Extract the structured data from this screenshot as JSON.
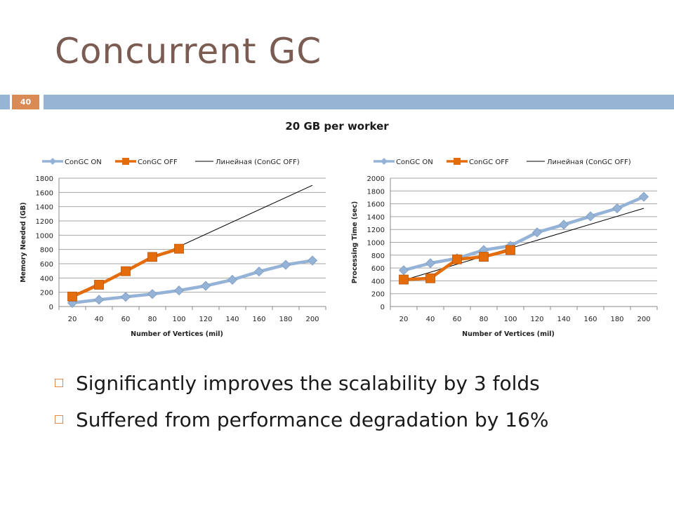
{
  "slide": {
    "title": "Concurrent GC",
    "page_number": "40",
    "chart_group_title": "20 GB per worker",
    "bullets": [
      "Significantly improves the scalability by 3 folds",
      "Suffered from performance degradation by 16%"
    ]
  },
  "colors": {
    "title": "#7a5c52",
    "accent_orange": "#d98a55",
    "accent_blue": "#96b4d3",
    "series_on": "#95b3d7",
    "series_off": "#e46c0a",
    "trend": "#000000"
  },
  "chart_data": [
    {
      "type": "line",
      "xlabel": "Number of Vertices (mil)",
      "ylabel": "Memory Needed (GB)",
      "x": [
        20,
        40,
        60,
        80,
        100,
        120,
        140,
        160,
        180,
        200
      ],
      "ylim": [
        0,
        1800
      ],
      "yticks": [
        0,
        200,
        400,
        600,
        800,
        1000,
        1200,
        1400,
        1600,
        1800
      ],
      "legend_position": "top",
      "grid": true,
      "series": [
        {
          "name": "ConGC ON",
          "marker": "diamond",
          "x": [
            20,
            40,
            60,
            80,
            100,
            120,
            140,
            160,
            180,
            200
          ],
          "values": [
            50,
            95,
            135,
            175,
            225,
            290,
            375,
            490,
            585,
            645
          ]
        },
        {
          "name": "ConGC OFF",
          "marker": "square",
          "x": [
            20,
            40,
            60,
            80,
            100
          ],
          "values": [
            140,
            305,
            495,
            695,
            810
          ]
        }
      ],
      "trendline": {
        "name": "Линейная (ConGC OFF)",
        "x": [
          20,
          200
        ],
        "values": [
          155,
          1700
        ]
      }
    },
    {
      "type": "line",
      "xlabel": "Number of Vertices (mil)",
      "ylabel": "Processing Time (sec)",
      "x": [
        20,
        40,
        60,
        80,
        100,
        120,
        140,
        160,
        180,
        200
      ],
      "ylim": [
        0,
        2000
      ],
      "yticks": [
        0,
        200,
        400,
        600,
        800,
        1000,
        1200,
        1400,
        1600,
        1800,
        2000
      ],
      "legend_position": "top",
      "grid": true,
      "series": [
        {
          "name": "ConGC ON",
          "marker": "diamond",
          "x": [
            20,
            40,
            60,
            80,
            100,
            120,
            140,
            160,
            180,
            200
          ],
          "values": [
            565,
            675,
            750,
            880,
            945,
            1155,
            1275,
            1405,
            1530,
            1710
          ]
        },
        {
          "name": "ConGC OFF",
          "marker": "square",
          "x": [
            20,
            40,
            60,
            80,
            100
          ],
          "values": [
            420,
            440,
            735,
            775,
            880
          ]
        }
      ],
      "trendline": {
        "name": "Линейная (ConGC OFF)",
        "x": [
          20,
          200
        ],
        "values": [
          410,
          1530
        ]
      }
    }
  ]
}
